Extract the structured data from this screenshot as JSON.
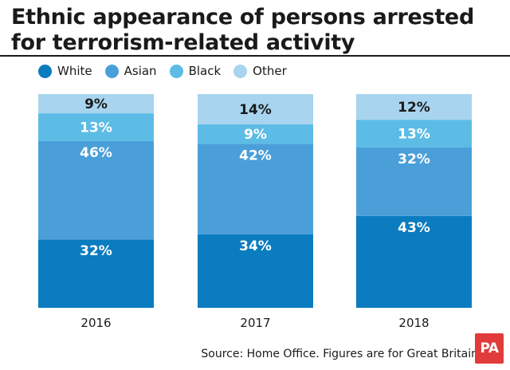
{
  "chart_data": {
    "type": "bar",
    "stacked": true,
    "title_line1": "Ethnic appearance of persons arrested",
    "title_line2": "for terrorism-related activity",
    "categories": [
      "2016",
      "2017",
      "2018"
    ],
    "series": [
      {
        "name": "White",
        "color": "#0a7cbf",
        "values": [
          32,
          34,
          43
        ]
      },
      {
        "name": "Asian",
        "color": "#4b9fd9",
        "values": [
          46,
          42,
          32
        ]
      },
      {
        "name": "Black",
        "color": "#5cbce6",
        "values": [
          13,
          9,
          13
        ]
      },
      {
        "name": "Other",
        "color": "#a8d4ef",
        "values": [
          9,
          14,
          12
        ]
      }
    ],
    "value_suffix": "%",
    "ylim": [
      0,
      100
    ],
    "xlabel": "",
    "ylabel": "",
    "legend_position": "top-left",
    "grid": false
  },
  "source": "Source: Home Office. Figures are for Great Britain",
  "logo_text": "PA"
}
